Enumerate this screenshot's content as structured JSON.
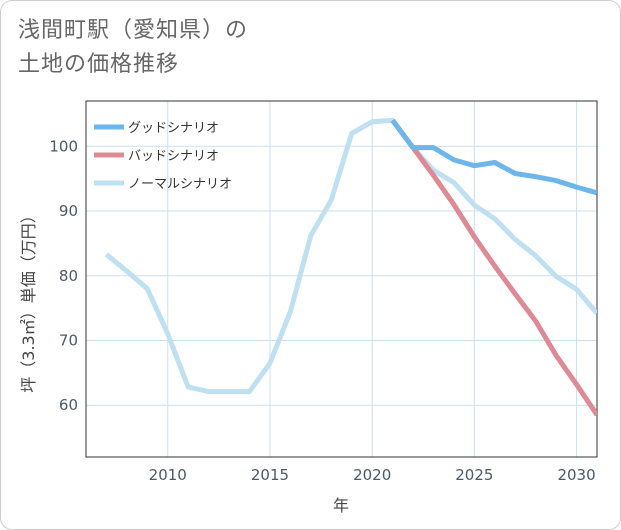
{
  "page": {
    "title_line1": "浅間町駅（愛知県）の",
    "title_line2": "土地の価格推移"
  },
  "chart_data": {
    "type": "line",
    "title": "浅間町駅（愛知県）の土地の価格推移",
    "xlabel": "年",
    "ylabel": "坪（3.3㎡）単価（万円）",
    "xlim": [
      2006,
      2031
    ],
    "ylim": [
      52,
      107
    ],
    "xticks": [
      2010,
      2015,
      2020,
      2025,
      2030
    ],
    "yticks": [
      60,
      70,
      80,
      90,
      100
    ],
    "grid": true,
    "legend_position": "top-left",
    "series": [
      {
        "name": "グッドシナリオ",
        "color": "#6db6ec",
        "x": [
          2021,
          2022,
          2023,
          2024,
          2025,
          2026,
          2027,
          2028,
          2029,
          2030,
          2031
        ],
        "values": [
          104,
          99.8,
          99.8,
          97.9,
          97,
          97.5,
          95.8,
          95.3,
          94.7,
          93.7,
          92.8
        ]
      },
      {
        "name": "バッドシナリオ",
        "color": "#dd8a94",
        "x": [
          2021,
          2022,
          2023,
          2024,
          2025,
          2026,
          2027,
          2028,
          2029,
          2030,
          2031
        ],
        "values": [
          104,
          99.8,
          95.5,
          91,
          86,
          81.5,
          77.2,
          73,
          67.7,
          63.2,
          58.5
        ]
      },
      {
        "name": "ノーマルシナリオ",
        "color": "#bfe0f0",
        "x": [
          2007,
          2008,
          2009,
          2010,
          2011,
          2012,
          2013,
          2014,
          2015,
          2016,
          2017,
          2018,
          2019,
          2020,
          2021,
          2022,
          2023,
          2024,
          2025,
          2026,
          2027,
          2028,
          2029,
          2030,
          2031
        ],
        "values": [
          83.3,
          80.7,
          78,
          71,
          62.8,
          62.1,
          62.1,
          62.1,
          66.5,
          74.5,
          86.2,
          91.7,
          102,
          103.8,
          104,
          99.8,
          96.3,
          94.4,
          90.9,
          88.8,
          85.6,
          83.1,
          79.9,
          77.9,
          74.2
        ]
      }
    ]
  }
}
